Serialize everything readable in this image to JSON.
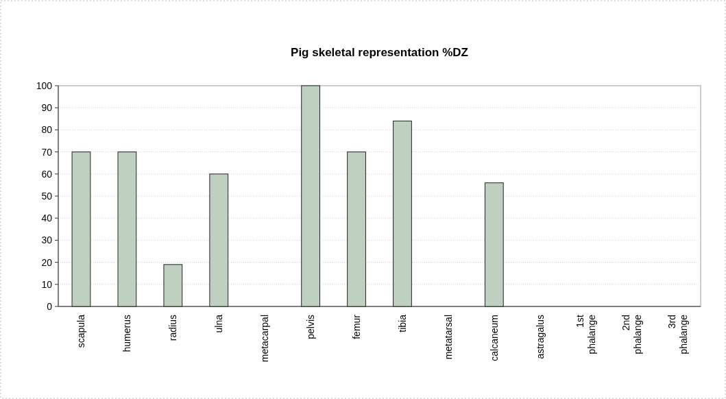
{
  "chart_data": {
    "type": "bar",
    "title": "Pig skeletal representation %DZ",
    "categories": [
      "scapula",
      "humerus",
      "radius",
      "ulna",
      "metacarpal",
      "pelvis",
      "femur",
      "tibia",
      "metatarsal",
      "calcaneum",
      "astragalus",
      "1st phalange",
      "2nd phalange",
      "3rd phalange"
    ],
    "values": [
      70,
      70,
      19,
      60,
      0,
      100,
      70,
      84,
      0,
      56,
      0,
      0,
      0,
      0
    ],
    "color": "#bfcfc0",
    "ylim": [
      0,
      100
    ],
    "yticks": [
      0,
      10,
      20,
      30,
      40,
      50,
      60,
      70,
      80,
      90,
      100
    ],
    "grid": "y"
  }
}
